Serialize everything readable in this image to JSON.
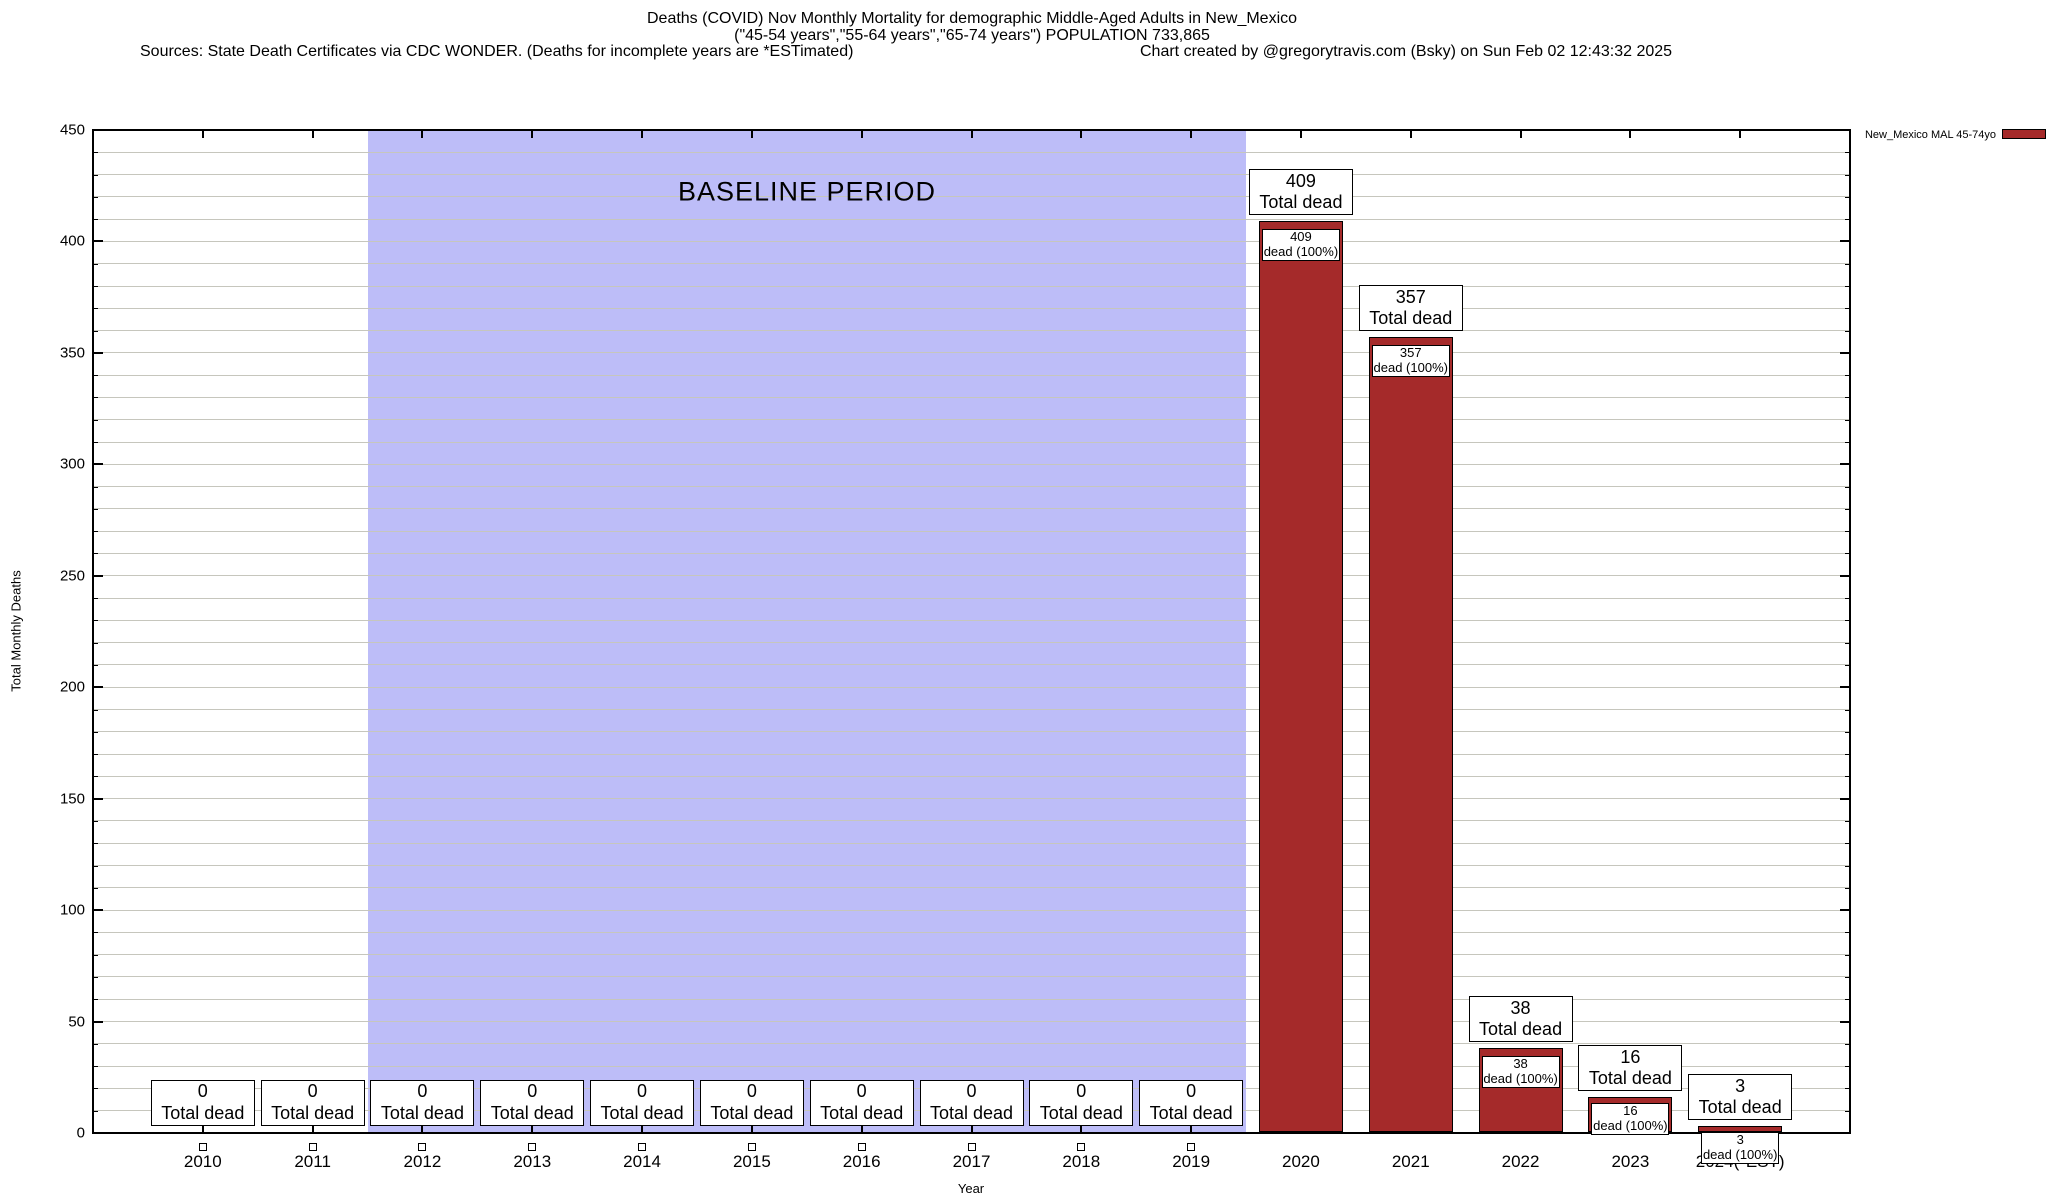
{
  "header": {
    "title_line1": "Deaths (COVID) Nov Monthly Mortality for demographic Middle-Aged Adults in New_Mexico",
    "title_line2": "(\"45-54 years\",\"55-64 years\",\"65-74 years\") POPULATION 733,865",
    "sources": "Sources: State Death Certificates via CDC WONDER. (Deaths for incomplete years are *ESTimated)",
    "credit": "Chart created by @gregorytravis.com (Bsky) on Sun Feb 02 12:43:32 2025"
  },
  "legend": {
    "label": "New_Mexico MAL 45-74yo",
    "swatch_color": "#a52a2a"
  },
  "chart_data": {
    "type": "bar",
    "title": "Deaths (COVID) Nov Monthly Mortality for demographic Middle-Aged Adults in New_Mexico",
    "xlabel": "Year",
    "ylabel": "Total Monthly Deaths",
    "ylim": [
      0,
      450
    ],
    "ytick_step": 50,
    "minor_gridline_step": 10,
    "grid": true,
    "legend_position": "top-right",
    "categories": [
      "2010",
      "2011",
      "2012",
      "2013",
      "2014",
      "2015",
      "2016",
      "2017",
      "2018",
      "2019",
      "2020",
      "2021",
      "2022",
      "2023",
      "2024(*EST)"
    ],
    "series": [
      {
        "name": "New_Mexico MAL 45-74yo",
        "color": "#a52a2a",
        "values": [
          0,
          0,
          0,
          0,
          0,
          0,
          0,
          0,
          0,
          0,
          409,
          357,
          38,
          16,
          3
        ]
      }
    ],
    "annotations": {
      "top_box_label": "Total dead",
      "inner_box_label": "dead (100%)"
    },
    "baseline_region": {
      "label": "BASELINE PERIOD",
      "from_category": "2012",
      "to_category": "2019",
      "color": "#bdbdf8"
    },
    "colors": {
      "bar": "#a52a2a",
      "gridline": "#c6c6bd",
      "baseline_band": "#bdbdf8"
    }
  }
}
